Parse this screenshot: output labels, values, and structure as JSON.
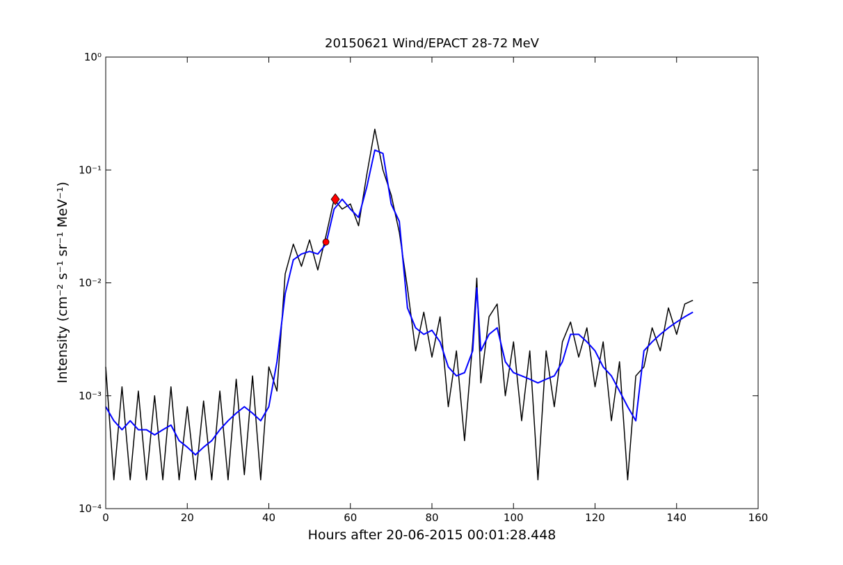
{
  "chart_data": {
    "type": "line",
    "title": "20150621 Wind/EPACT 28-72 MeV",
    "x_label": "Hours after 20-06-2015 00:01:28.448",
    "y_label": "Intensity (cm⁻² s⁻¹ sr⁻¹ MeV⁻¹)",
    "log_y": true,
    "xlim": [
      0,
      160
    ],
    "xticks": [
      0,
      20,
      40,
      60,
      80,
      100,
      120,
      140,
      160
    ],
    "ylim": [
      0.0001,
      1
    ],
    "yticks": [
      {
        "value": 0.0001,
        "label": "10⁻⁴"
      },
      {
        "value": 0.001,
        "label": "10⁻³"
      },
      {
        "value": 0.01,
        "label": "10⁻²"
      },
      {
        "value": 0.1,
        "label": "10⁻¹"
      },
      {
        "value": 1,
        "label": "10⁰"
      }
    ],
    "x": [
      0,
      2,
      4,
      6,
      8,
      10,
      12,
      14,
      16,
      18,
      20,
      22,
      24,
      26,
      28,
      30,
      32,
      34,
      36,
      38,
      40,
      42,
      44,
      46,
      48,
      50,
      52,
      54,
      56,
      58,
      60,
      62,
      64,
      66,
      68,
      70,
      72,
      74,
      76,
      78,
      80,
      82,
      84,
      86,
      88,
      90,
      91,
      92,
      94,
      96,
      98,
      100,
      102,
      104,
      106,
      108,
      110,
      112,
      114,
      116,
      118,
      120,
      122,
      124,
      126,
      128,
      130,
      132,
      134,
      136,
      138,
      140,
      142,
      144
    ],
    "series": [
      {
        "color": "#000000",
        "values": [
          0.0018,
          0.00018,
          0.0012,
          0.00018,
          0.0011,
          0.00018,
          0.001,
          0.00018,
          0.0012,
          0.00018,
          0.0008,
          0.00018,
          0.0009,
          0.00018,
          0.0011,
          0.00018,
          0.0014,
          0.0002,
          0.0015,
          0.00018,
          0.0018,
          0.0011,
          0.012,
          0.022,
          0.014,
          0.024,
          0.013,
          0.026,
          0.055,
          0.045,
          0.05,
          0.032,
          0.09,
          0.23,
          0.1,
          0.06,
          0.028,
          0.009,
          0.0025,
          0.0055,
          0.0022,
          0.005,
          0.0008,
          0.0025,
          0.0004,
          0.003,
          0.011,
          0.0013,
          0.005,
          0.0065,
          0.001,
          0.003,
          0.0006,
          0.0025,
          0.00018,
          0.0025,
          0.0008,
          0.003,
          0.0045,
          0.0022,
          0.004,
          0.0012,
          0.003,
          0.0006,
          0.002,
          0.00018,
          0.0015,
          0.0018,
          0.004,
          0.0025,
          0.006,
          0.0035,
          0.0065,
          0.007
        ]
      },
      {
        "color": "#0000ff",
        "values": [
          0.0008,
          0.0006,
          0.0005,
          0.0006,
          0.0005,
          0.0005,
          0.00045,
          0.0005,
          0.00055,
          0.0004,
          0.00035,
          0.0003,
          0.00035,
          0.0004,
          0.0005,
          0.0006,
          0.0007,
          0.0008,
          0.0007,
          0.0006,
          0.0008,
          0.002,
          0.008,
          0.016,
          0.018,
          0.019,
          0.018,
          0.022,
          0.045,
          0.055,
          0.045,
          0.038,
          0.07,
          0.15,
          0.14,
          0.05,
          0.035,
          0.006,
          0.004,
          0.0035,
          0.0038,
          0.003,
          0.0018,
          0.0015,
          0.0016,
          0.0025,
          0.009,
          0.0025,
          0.0035,
          0.004,
          0.002,
          0.0016,
          0.0015,
          0.0014,
          0.0013,
          0.0014,
          0.0015,
          0.002,
          0.0035,
          0.0035,
          0.003,
          0.0025,
          0.0018,
          0.0015,
          0.0011,
          0.0008,
          0.0006,
          0.0025,
          0.003,
          0.0035,
          0.004,
          0.0045,
          0.005,
          0.0055
        ]
      }
    ],
    "markers": [
      {
        "x": 54,
        "y": 0.023,
        "shape": "circle",
        "color": "#ff0000"
      },
      {
        "x": 56.3,
        "y": 0.055,
        "shape": "diamond",
        "color": "#ff0000"
      }
    ]
  }
}
